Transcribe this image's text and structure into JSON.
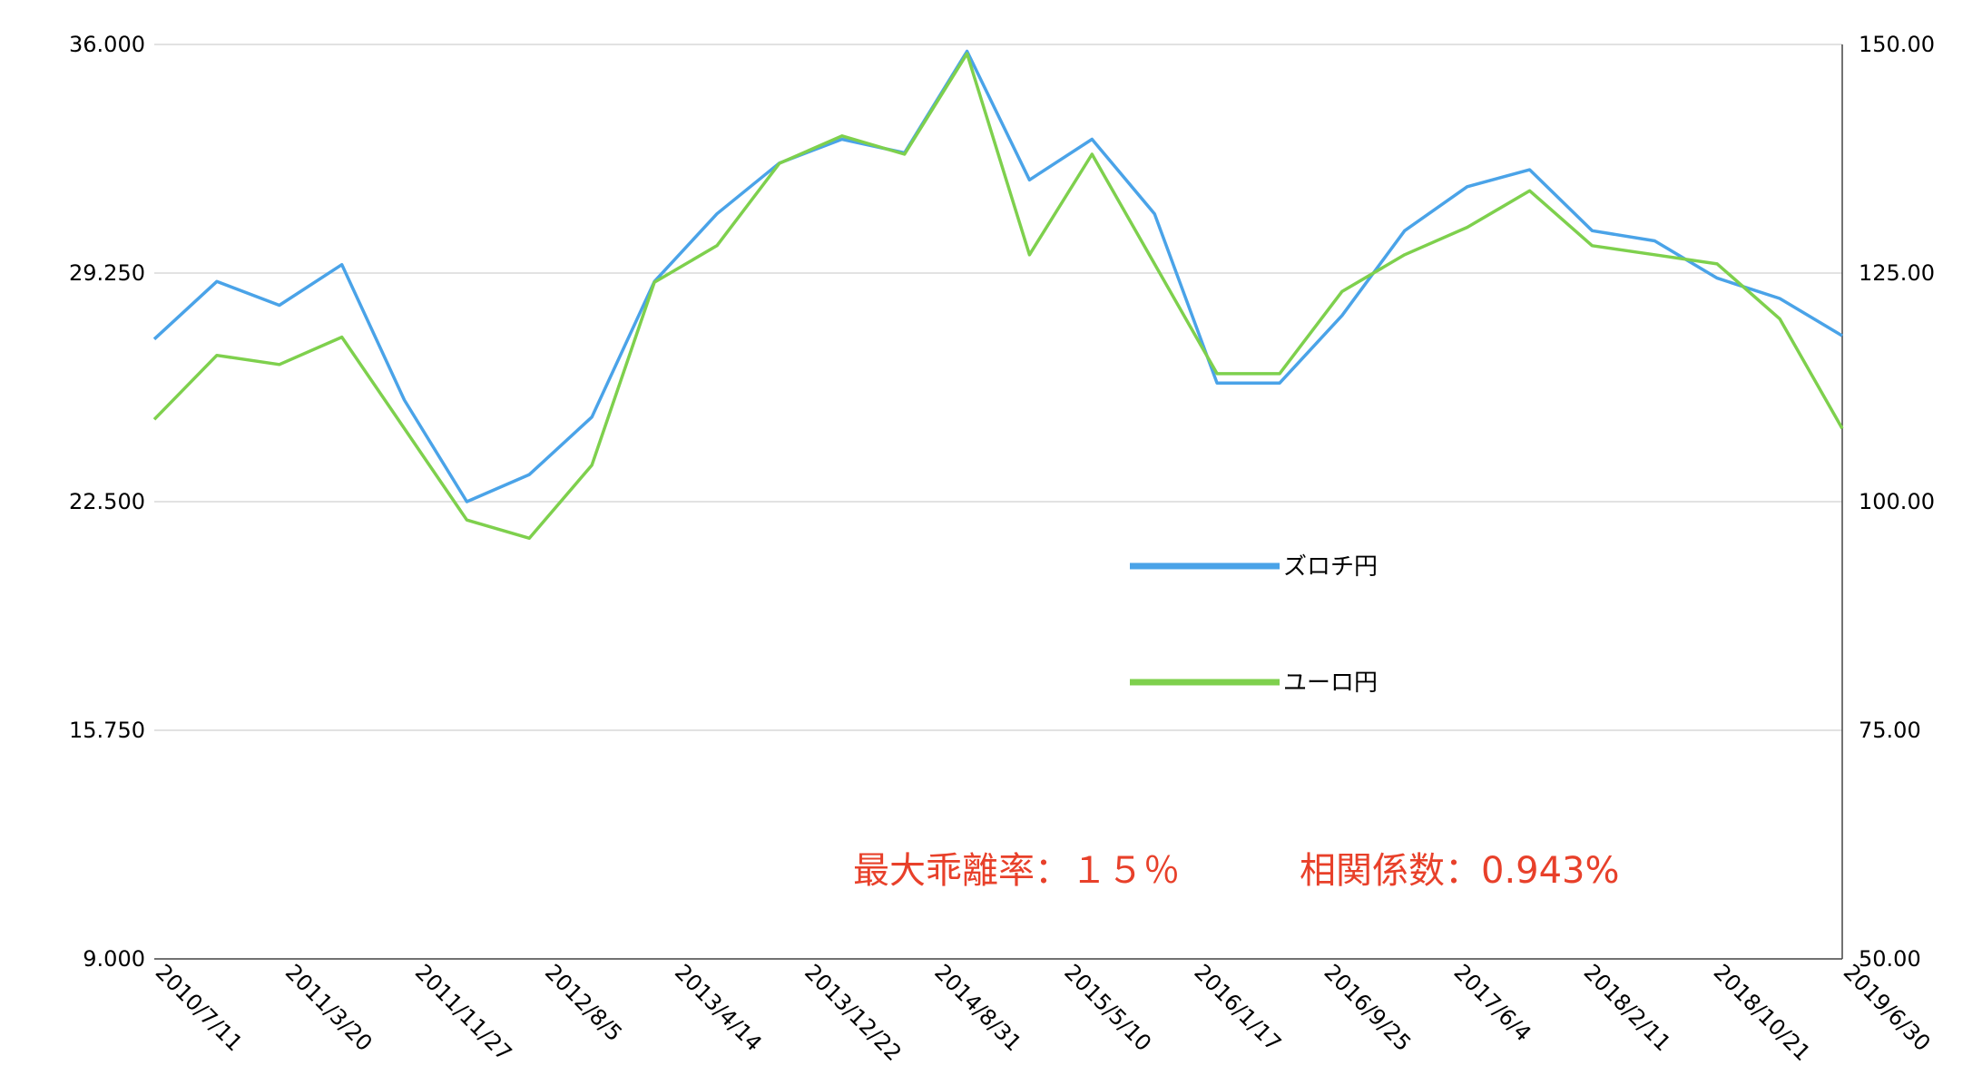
{
  "chart_data": {
    "type": "line",
    "title": "",
    "xlabel": "",
    "ylabel": "",
    "y2label": "",
    "grid": "horizontal",
    "ylim": [
      9.0,
      36.0
    ],
    "y2lim": [
      50.0,
      150.0
    ],
    "yticks": [
      "9.000",
      "15.750",
      "22.500",
      "29.250",
      "36.000"
    ],
    "y2ticks": [
      "50.00",
      "75.00",
      "100.00",
      "125.00",
      "150.00"
    ],
    "xticks": [
      "2010/7/11",
      "2011/3/20",
      "2011/11/27",
      "2012/8/5",
      "2013/4/14",
      "2013/12/22",
      "2014/8/31",
      "2015/5/10",
      "2016/1/17",
      "2016/9/25",
      "2017/6/4",
      "2018/2/11",
      "2018/10/21",
      "2019/6/30"
    ],
    "x": [
      "2010/7/11",
      "2010/11/14",
      "2011/3/20",
      "2011/7/24",
      "2011/11/27",
      "2012/4/1",
      "2012/8/5",
      "2012/12/9",
      "2013/4/14",
      "2013/8/18",
      "2013/12/22",
      "2014/4/27",
      "2014/8/31",
      "2015/1/4",
      "2015/5/10",
      "2015/9/13",
      "2016/1/17",
      "2016/5/22",
      "2016/9/25",
      "2017/1/29",
      "2017/6/4",
      "2017/10/8",
      "2018/2/11",
      "2018/6/17",
      "2018/10/21",
      "2019/2/24",
      "2019/6/30",
      "2019/10/6"
    ],
    "series": [
      {
        "name": "ズロチ円",
        "axis": "left",
        "color": "#4aa3e8",
        "values": [
          27.3,
          29.0,
          28.3,
          29.5,
          25.5,
          22.5,
          23.3,
          25.0,
          29.0,
          31.0,
          32.5,
          33.2,
          32.8,
          35.8,
          32.0,
          33.2,
          31.0,
          26.0,
          26.0,
          28.0,
          30.5,
          31.8,
          32.3,
          30.5,
          30.2,
          29.1,
          28.5,
          27.4
        ]
      },
      {
        "name": "ユーロ円",
        "axis": "right",
        "color": "#7ed04d",
        "values": [
          109,
          116,
          115,
          118,
          108,
          98,
          96,
          104,
          124,
          128,
          137,
          140,
          138,
          149,
          127,
          138,
          126,
          114,
          114,
          123,
          127,
          130,
          134,
          128,
          127,
          126,
          120,
          108
        ]
      }
    ],
    "legend_position": "center-right",
    "annotations": [
      "最大乖離率：１５％",
      "相関係数：0.943%"
    ]
  }
}
